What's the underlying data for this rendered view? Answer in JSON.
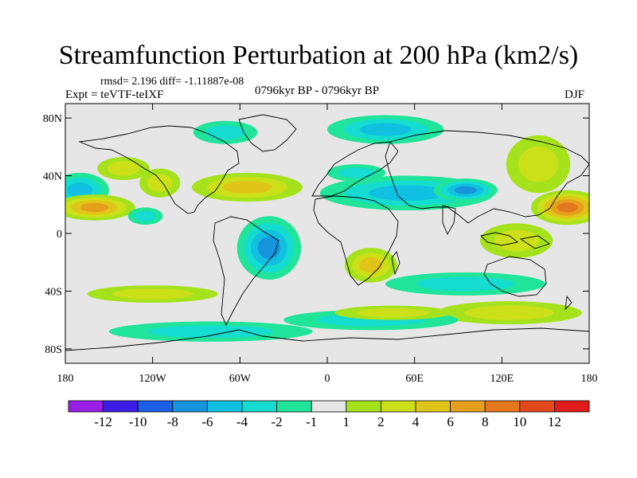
{
  "title": "Streamfunction Perturbation at 200 hPa (km2/s)",
  "stats_text": "rmsd= 2.196 diff= -1.11887e-08",
  "experiment": "Expt = teVTF-teIXF",
  "period": "0796kyr BP - 0796kyr BP",
  "season": "DJF",
  "map": {
    "lon_range": [
      -180,
      180
    ],
    "lat_range": [
      -90,
      90
    ],
    "lat_ticks": [
      {
        "value": 80,
        "label": "80N"
      },
      {
        "value": 40,
        "label": "40N"
      },
      {
        "value": 0,
        "label": "0"
      },
      {
        "value": -40,
        "label": "40S"
      },
      {
        "value": -80,
        "label": "80S"
      }
    ],
    "lon_ticks": [
      {
        "value": -180,
        "label": "180"
      },
      {
        "value": -120,
        "label": "120W"
      },
      {
        "value": -60,
        "label": "60W"
      },
      {
        "value": 0,
        "label": "0"
      },
      {
        "value": 60,
        "label": "60E"
      },
      {
        "value": 120,
        "label": "120E"
      },
      {
        "value": 180,
        "label": "180"
      }
    ],
    "background_color": "#e6e6e6"
  },
  "colorbar": {
    "colors": [
      "#9a1fe6",
      "#3c1ee6",
      "#1c5fe6",
      "#1694dc",
      "#10c0e0",
      "#14dcd0",
      "#20e49a",
      "#e6e6e6",
      "#a6e21c",
      "#cce01a",
      "#e0c418",
      "#e4a01c",
      "#e4781c",
      "#e2481c",
      "#e01c1c"
    ],
    "labels": [
      "-12",
      "-10",
      "-8",
      "-6",
      "-4",
      "-2",
      "-1",
      "1",
      "2",
      "4",
      "6",
      "8",
      "10",
      "12"
    ]
  },
  "anomalies": [
    {
      "lon": -170,
      "lat": 30,
      "level": -5,
      "rlon": 20,
      "rlat": 12
    },
    {
      "lon": -160,
      "lat": 18,
      "level": 7,
      "rlon": 28,
      "rlat": 9
    },
    {
      "lon": -140,
      "lat": 45,
      "level": 3,
      "rlon": 18,
      "rlat": 8
    },
    {
      "lon": -115,
      "lat": 35,
      "level": 2,
      "rlon": 14,
      "rlat": 10
    },
    {
      "lon": -125,
      "lat": 12,
      "level": -2,
      "rlon": 12,
      "rlat": 6
    },
    {
      "lon": -70,
      "lat": 70,
      "level": -3,
      "rlon": 22,
      "rlat": 8
    },
    {
      "lon": -55,
      "lat": 32,
      "level": 5,
      "rlon": 38,
      "rlat": 10
    },
    {
      "lon": -40,
      "lat": -10,
      "level": -7,
      "rlon": 22,
      "rlat": 22
    },
    {
      "lon": 40,
      "lat": 72,
      "level": -4,
      "rlon": 40,
      "rlat": 10
    },
    {
      "lon": 55,
      "lat": 28,
      "level": -5,
      "rlon": 60,
      "rlat": 12
    },
    {
      "lon": 95,
      "lat": 30,
      "level": -6,
      "rlon": 22,
      "rlat": 8
    },
    {
      "lon": 20,
      "lat": 42,
      "level": -2,
      "rlon": 20,
      "rlat": 6
    },
    {
      "lon": 145,
      "lat": 48,
      "level": 2,
      "rlon": 22,
      "rlat": 20
    },
    {
      "lon": 165,
      "lat": 18,
      "level": 8,
      "rlon": 25,
      "rlat": 12
    },
    {
      "lon": 130,
      "lat": -5,
      "level": 3,
      "rlon": 25,
      "rlat": 12
    },
    {
      "lon": 30,
      "lat": -22,
      "level": 4,
      "rlon": 18,
      "rlat": 12
    },
    {
      "lon": 95,
      "lat": -35,
      "level": -3,
      "rlon": 55,
      "rlat": 8
    },
    {
      "lon": 125,
      "lat": -55,
      "level": 3,
      "rlon": 50,
      "rlat": 8
    },
    {
      "lon": -120,
      "lat": -42,
      "level": 3,
      "rlon": 45,
      "rlat": 6
    },
    {
      "lon": -80,
      "lat": -68,
      "level": -2,
      "rlon": 70,
      "rlat": 7
    },
    {
      "lon": 30,
      "lat": -60,
      "level": -2,
      "rlon": 60,
      "rlat": 7
    },
    {
      "lon": 45,
      "lat": -55,
      "level": 2,
      "rlon": 40,
      "rlat": 5
    }
  ]
}
